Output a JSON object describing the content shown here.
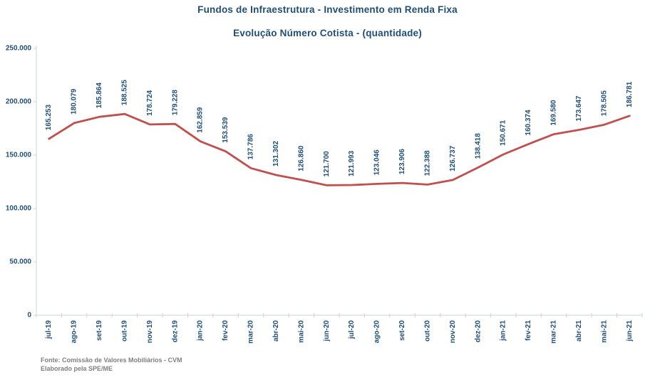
{
  "header": {
    "title": "Fundos de Infraestrutura - Investimento em Renda Fixa",
    "subtitle": "Evolução Número Cotista - (quantidade)"
  },
  "chart_data": {
    "type": "line",
    "title": "Fundos de Infraestrutura - Investimento em Renda Fixa",
    "subtitle": "Evolução Número Cotista - (quantidade)",
    "categories": [
      "jul-19",
      "ago-19",
      "set-19",
      "out-19",
      "nov-19",
      "dez-19",
      "jan-20",
      "fev-20",
      "mar-20",
      "abr-20",
      "mai-20",
      "jun-20",
      "jul-20",
      "ago-20",
      "set-20",
      "out-20",
      "nov-20",
      "dez-20",
      "jan-21",
      "fev-21",
      "mar-21",
      "abr-21",
      "mai-21",
      "jun-21"
    ],
    "values": [
      165253,
      180079,
      185864,
      188525,
      178724,
      179228,
      162859,
      153539,
      137786,
      131302,
      126860,
      121700,
      121993,
      123046,
      123906,
      122388,
      126737,
      138418,
      150671,
      160374,
      169580,
      173647,
      178505,
      186781
    ],
    "data_labels": [
      "165.253",
      "180.079",
      "185.864",
      "188.525",
      "178.724",
      "179.228",
      "162.859",
      "153.539",
      "137.786",
      "131.302",
      "126.860",
      "121.700",
      "121.993",
      "123.046",
      "123.906",
      "122.388",
      "126.737",
      "138.418",
      "150.671",
      "160.374",
      "169.580",
      "173.647",
      "178.505",
      "186.781"
    ],
    "ylim": [
      0,
      250000
    ],
    "yticks": [
      0,
      50000,
      100000,
      150000,
      200000,
      250000
    ],
    "ytick_labels": [
      "0",
      "50.000",
      "100.000",
      "150.000",
      "200.000",
      "250.000"
    ],
    "line_color": "#C0504D",
    "label_color": "#1F4E79",
    "axis_color": "#C9D3DC",
    "grid": false,
    "legend": "none",
    "data_label_rotation": -90,
    "xtick_rotation": -90
  },
  "footer": {
    "source_line1": "Fonte: Comissão de Valores Mobiliários - CVM",
    "source_line2": "Elaborado pela SPE/ME"
  }
}
